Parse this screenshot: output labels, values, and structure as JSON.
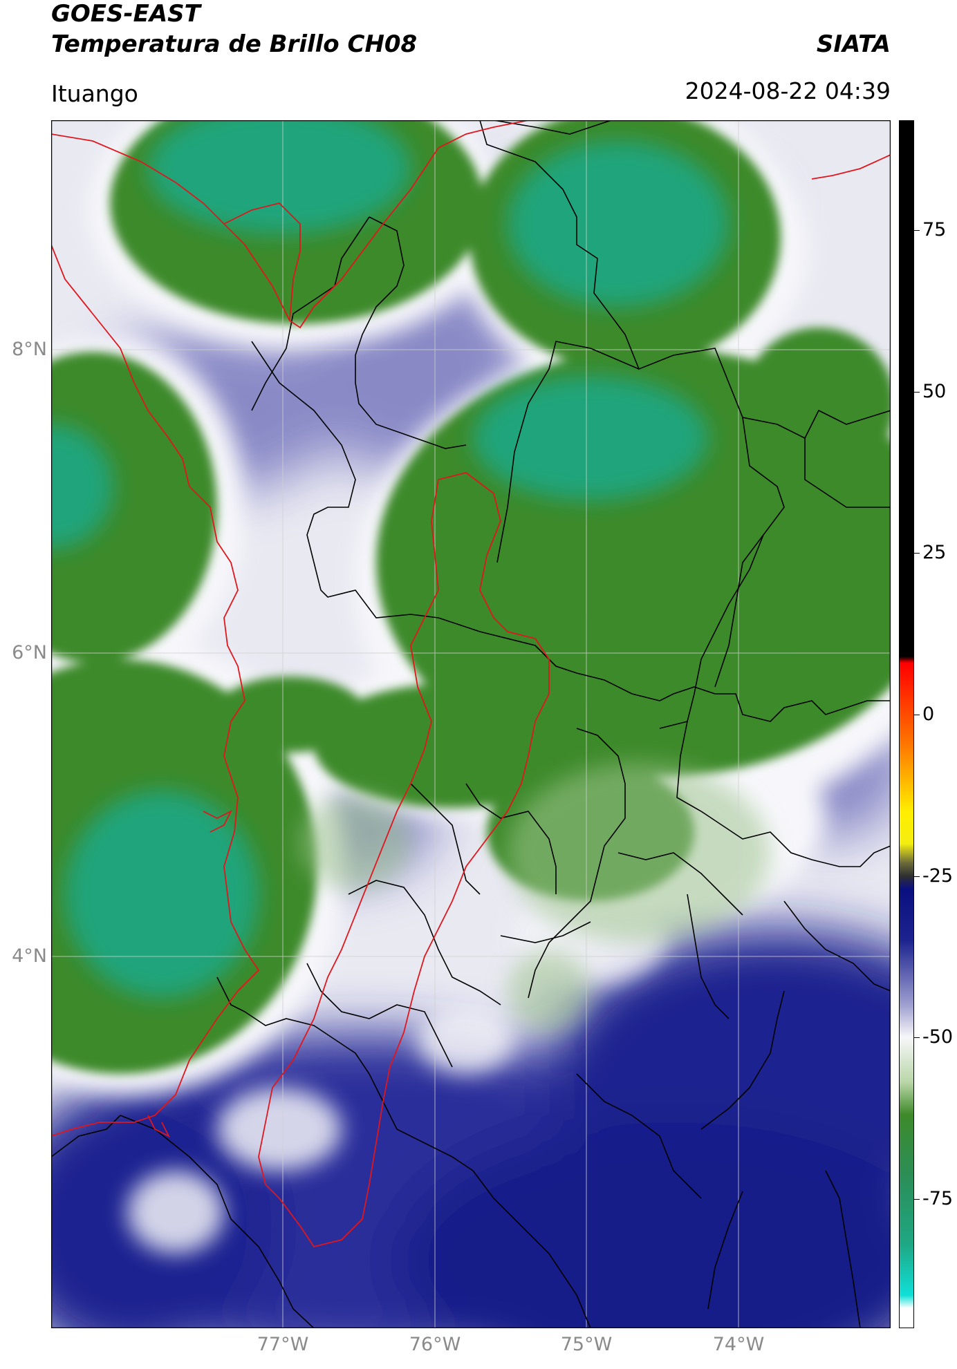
{
  "header": {
    "satellite": "GOES-EAST",
    "product": "Temperatura de Brillo CH08",
    "organization": "SIATA",
    "region": "Ituango",
    "datetime": "2024-08-22 04:39"
  },
  "axes": {
    "lat_labels": [
      "8°N",
      "6°N",
      "4°N"
    ],
    "lon_labels": [
      "77°W",
      "76°W",
      "75°W",
      "74°W"
    ]
  },
  "colorbar": {
    "ticks": [
      "75",
      "50",
      "25",
      "0",
      "-25",
      "-50",
      "-75"
    ],
    "tick_values": [
      75,
      50,
      25,
      0,
      -25,
      -50,
      -75
    ],
    "range": [
      -95,
      92
    ],
    "unit": ""
  },
  "colors": {
    "cold_cloud": "#1fa784",
    "deep_green": "#3e8a2a",
    "light": "#f3f3f7",
    "mid_blue": "#8f8fca",
    "dark_blue": "#101a86",
    "warm_black": "#000000",
    "boundary_red": "#e0161c",
    "boundary_black": "#000000"
  }
}
